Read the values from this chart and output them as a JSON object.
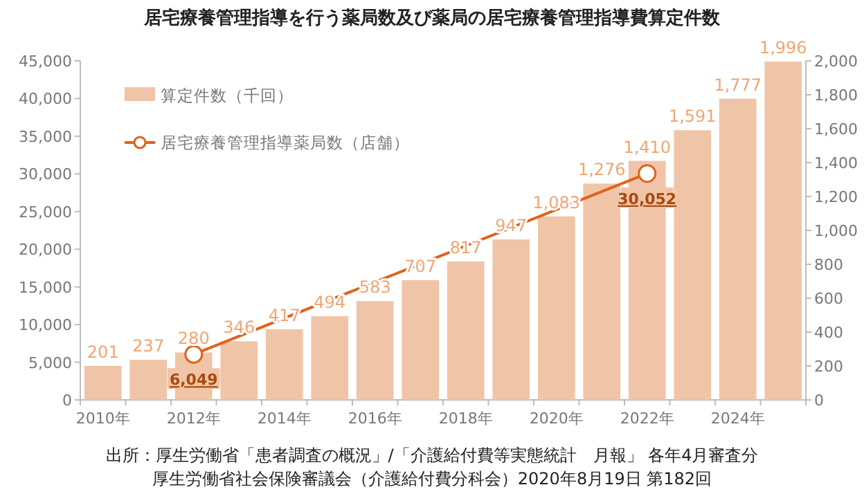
{
  "chart_data": {
    "type": "bar",
    "title": "居宅療養管理指導を行う薬局数及び薬局の居宅療養管理指導費算定件数",
    "categories": [
      "2010年",
      null,
      "2012年",
      null,
      "2014年",
      null,
      "2016年",
      null,
      "2018年",
      null,
      "2020年",
      null,
      "2022年",
      null,
      "2024年",
      null
    ],
    "series": [
      {
        "name": "算定件数（千回）",
        "axis": "y2",
        "color": "#f0c5a7",
        "values": [
          201,
          237,
          280,
          346,
          417,
          494,
          583,
          707,
          817,
          947,
          1083,
          1276,
          1410,
          1591,
          1777,
          1996
        ],
        "value_labels": [
          "201",
          "237",
          "280",
          "346",
          "417",
          "494",
          "583",
          "707",
          "817",
          "947",
          "1,083",
          "1,276",
          "1,410",
          "1,591",
          "1,777",
          "1,996"
        ]
      },
      {
        "name": "居宅療養管理指導薬局数（店舗）",
        "type": "line",
        "axis": "y",
        "color": "#e0621d",
        "marker": "circle",
        "values": [
          null,
          null,
          6049,
          null,
          null,
          null,
          null,
          null,
          null,
          null,
          null,
          null,
          30052,
          null,
          null,
          null
        ],
        "value_labels": [
          null,
          null,
          "6,049",
          null,
          null,
          null,
          null,
          null,
          null,
          null,
          null,
          null,
          "30,052",
          null,
          null,
          null
        ]
      }
    ],
    "ylim": [
      0,
      45000
    ],
    "yticks": [
      {
        "value": 0,
        "label": "0"
      },
      {
        "value": 5000,
        "label": "5,000"
      },
      {
        "value": 10000,
        "label": "10,000"
      },
      {
        "value": 15000,
        "label": "15,000"
      },
      {
        "value": 20000,
        "label": "20,000"
      },
      {
        "value": 25000,
        "label": "25,000"
      },
      {
        "value": 30000,
        "label": "30,000"
      },
      {
        "value": 35000,
        "label": "35,000"
      },
      {
        "value": 40000,
        "label": "40,000"
      },
      {
        "value": 45000,
        "label": "45,000"
      }
    ],
    "y2lim": [
      0,
      2000
    ],
    "y2ticks": [
      {
        "value": 0,
        "label": "0"
      },
      {
        "value": 200,
        "label": "200"
      },
      {
        "value": 400,
        "label": "400"
      },
      {
        "value": 600,
        "label": "600"
      },
      {
        "value": 800,
        "label": "800"
      },
      {
        "value": 1000,
        "label": "1,000"
      },
      {
        "value": 1200,
        "label": "1,200"
      },
      {
        "value": 1400,
        "label": "1,400"
      },
      {
        "value": 1600,
        "label": "1,600"
      },
      {
        "value": 1800,
        "label": "1,800"
      },
      {
        "value": 2000,
        "label": "2,000"
      }
    ],
    "legend": "top left",
    "grid": false,
    "annotations": [
      "出所：厚生労働省「患者調査の概況」/「介護給付費等実態統計　月報」 各年4月審査分",
      "厚生労働省社会保険審議会（介護給付費分科会）2020年8月19日  第182回"
    ]
  }
}
